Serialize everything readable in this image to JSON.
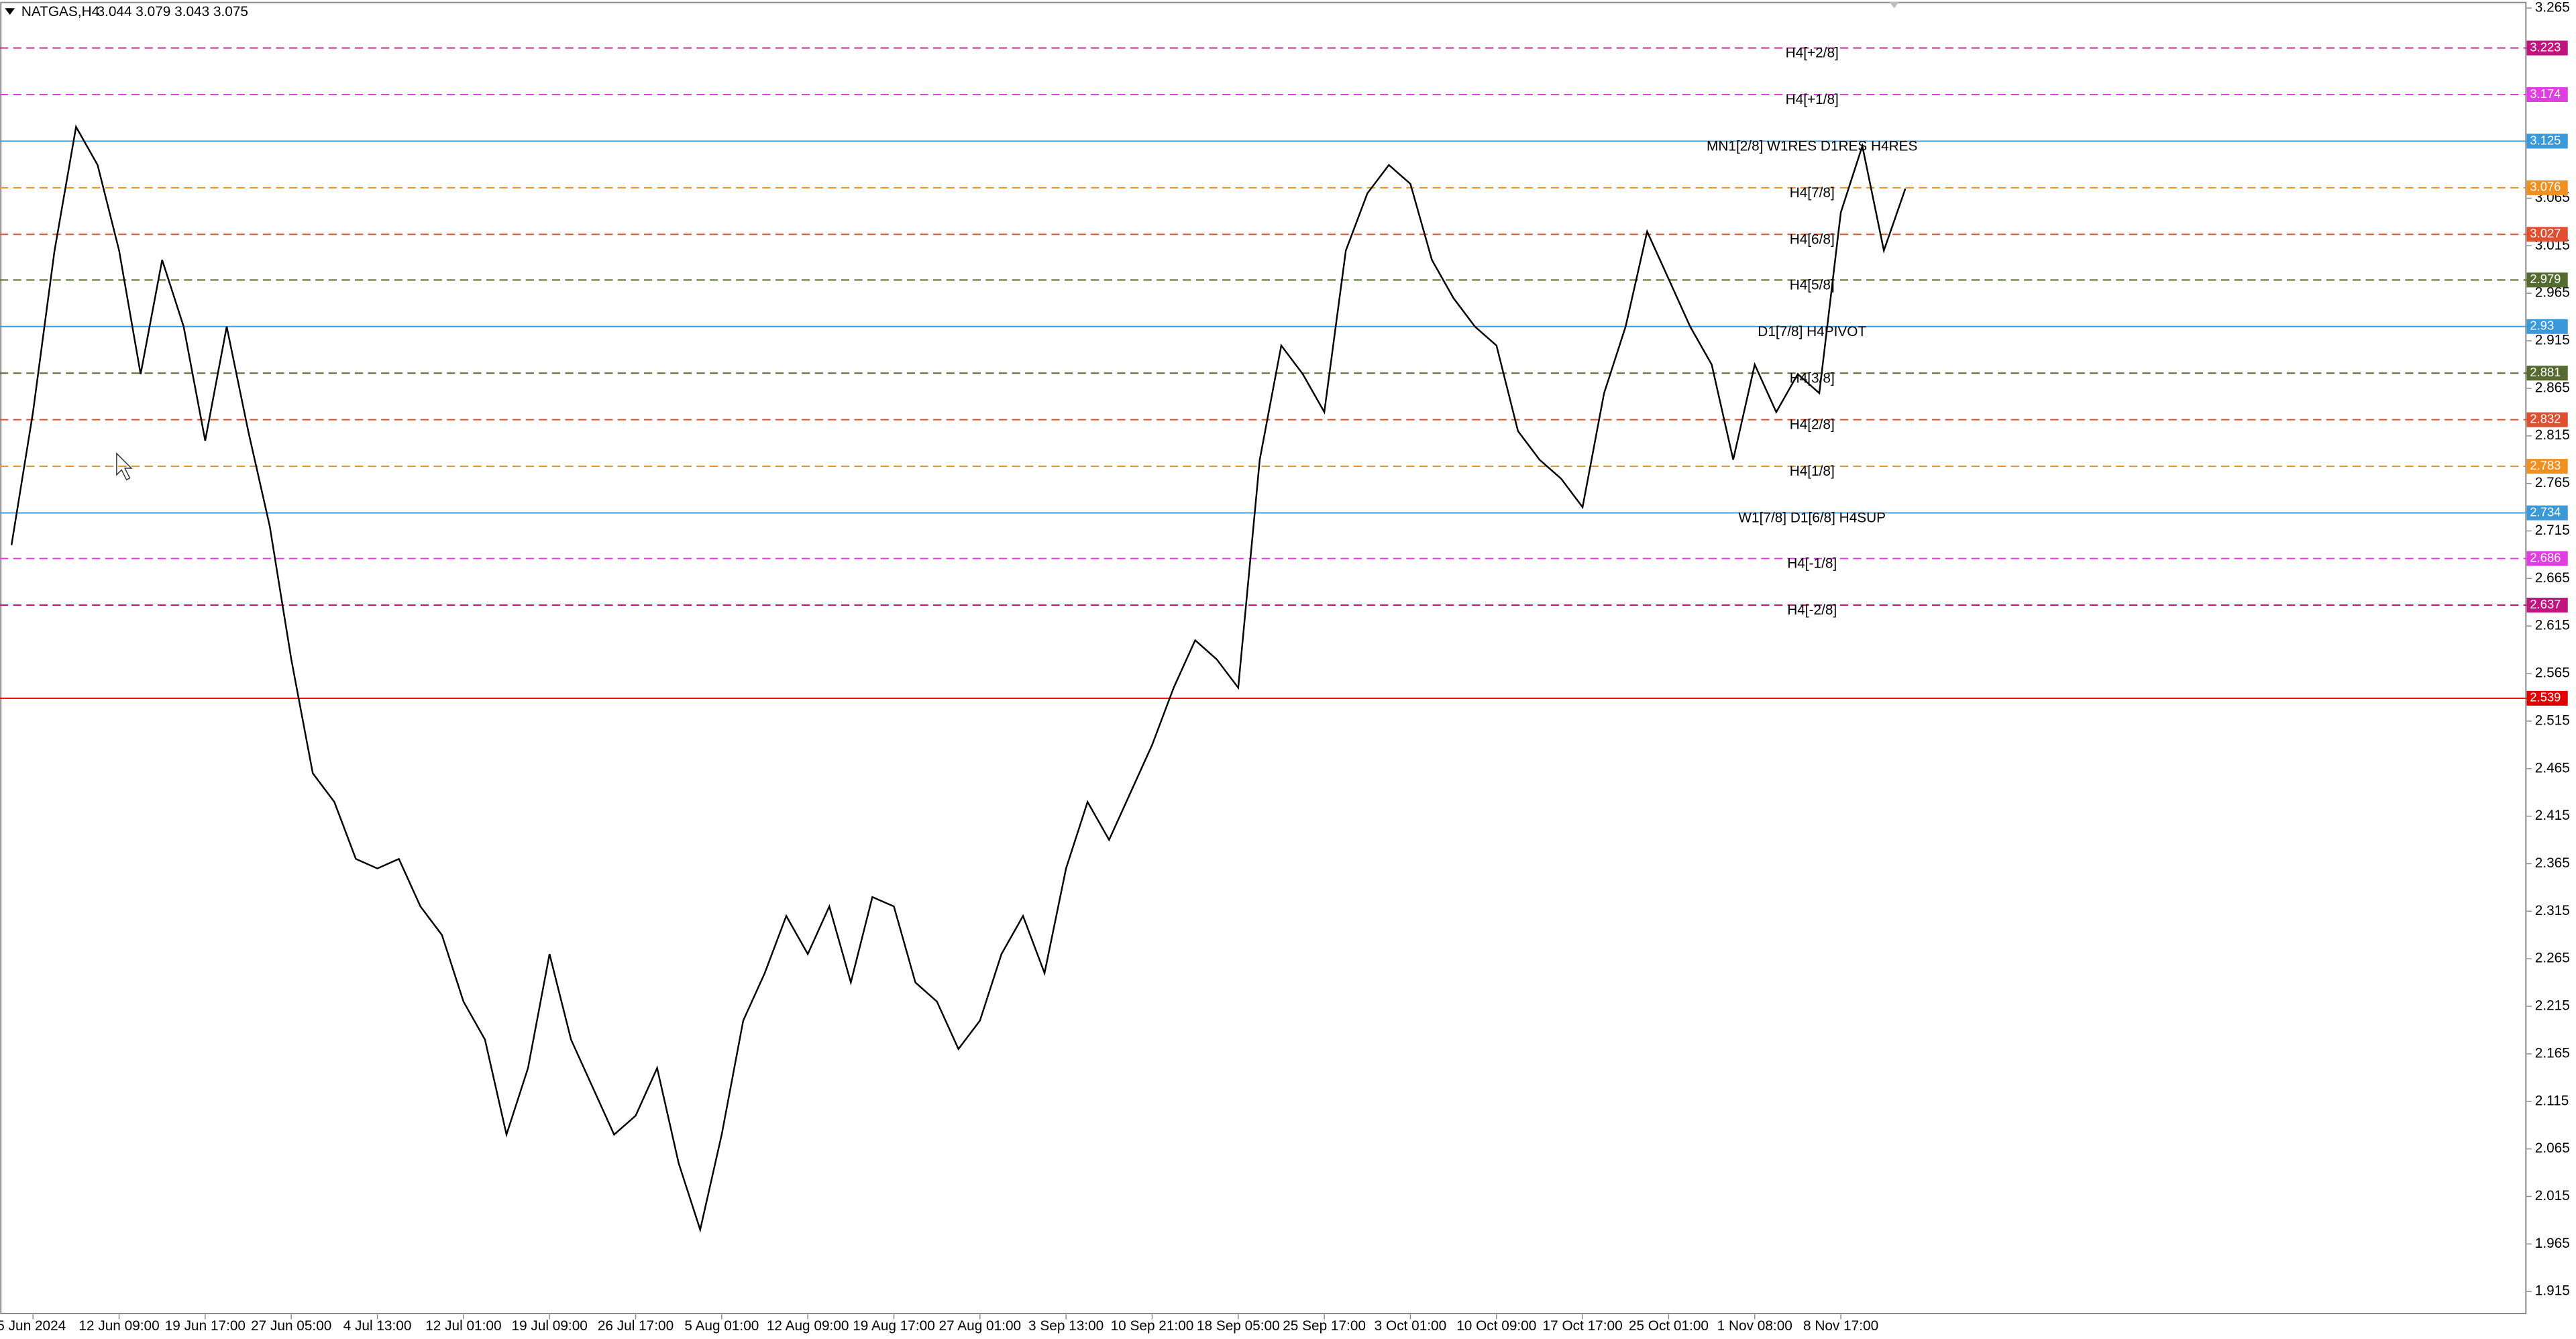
{
  "chart_data": {
    "type": "line",
    "title": "NATGAS,H4",
    "subtitle": "3.044 3.079 3.043 3.075",
    "categories": [
      null,
      "5 Jun 2024",
      null,
      null,
      null,
      "12 Jun 09:00",
      null,
      null,
      null,
      "19 Jun 17:00",
      null,
      null,
      null,
      "27 Jun 05:00",
      null,
      null,
      null,
      "4 Jul 13:00",
      null,
      null,
      null,
      "12 Jul 01:00",
      null,
      null,
      null,
      "19 Jul 09:00",
      null,
      null,
      null,
      "26 Jul 17:00",
      null,
      null,
      null,
      "5 Aug 01:00",
      null,
      null,
      null,
      "12 Aug 09:00",
      null,
      null,
      null,
      "19 Aug 17:00",
      null,
      null,
      null,
      "27 Aug 01:00",
      null,
      null,
      null,
      "3 Sep 13:00",
      null,
      null,
      null,
      "10 Sep 21:00",
      null,
      null,
      null,
      "18 Sep 05:00",
      null,
      null,
      null,
      "25 Sep 17:00",
      null,
      null,
      null,
      "3 Oct 01:00",
      null,
      null,
      null,
      "10 Oct 09:00",
      null,
      null,
      null,
      "17 Oct 17:00",
      null,
      null,
      null,
      "25 Oct 01:00",
      null,
      null,
      null,
      "1 Nov 08:00",
      null,
      null,
      null,
      "8 Nov 17:00",
      null,
      null,
      null
    ],
    "values": [
      2.7,
      2.84,
      3.01,
      3.14,
      3.1,
      3.01,
      2.88,
      3.0,
      2.93,
      2.81,
      2.93,
      2.82,
      2.72,
      2.58,
      2.46,
      2.43,
      2.37,
      2.36,
      2.37,
      2.32,
      2.29,
      2.22,
      2.18,
      2.08,
      2.15,
      2.27,
      2.18,
      2.13,
      2.08,
      2.1,
      2.15,
      2.05,
      1.98,
      2.08,
      2.2,
      2.25,
      2.31,
      2.27,
      2.32,
      2.24,
      2.33,
      2.32,
      2.24,
      2.22,
      2.17,
      2.2,
      2.27,
      2.31,
      2.25,
      2.36,
      2.43,
      2.39,
      2.44,
      2.49,
      2.55,
      2.6,
      2.58,
      2.55,
      2.79,
      2.91,
      2.88,
      2.84,
      3.01,
      3.07,
      3.1,
      3.08,
      3.0,
      2.96,
      2.93,
      2.91,
      2.82,
      2.79,
      2.77,
      2.74,
      2.86,
      2.93,
      3.03,
      2.98,
      2.93,
      2.89,
      2.79,
      2.89,
      2.84,
      2.88,
      2.86,
      3.05,
      3.12,
      3.01,
      3.075
    ],
    "color": "#000000",
    "ylim": [
      1.891,
      3.27
    ],
    "yticks": [
      3.265,
      3.065,
      3.015,
      2.965,
      2.915,
      2.865,
      2.815,
      2.765,
      2.715,
      2.665,
      2.615,
      2.565,
      2.515,
      2.465,
      2.415,
      2.365,
      2.315,
      2.265,
      2.215,
      2.165,
      2.115,
      2.065,
      2.015,
      1.965,
      1.915
    ],
    "levels": [
      {
        "value": 3.223,
        "label": "H4[+2/8]",
        "color": "#c0157f",
        "style": "dashed"
      },
      {
        "value": 3.174,
        "label": "H4[+1/8]",
        "color": "#e03ee0",
        "style": "dashed"
      },
      {
        "value": 3.125,
        "label": "MN1[2/8] W1RES D1RES H4RES",
        "color": "#3a9ad9",
        "style": "solid"
      },
      {
        "value": 3.076,
        "label": "H4[7/8]",
        "color": "#f09020",
        "style": "dashed"
      },
      {
        "value": 3.027,
        "label": "H4[6/8]",
        "color": "#e05030",
        "style": "dashed"
      },
      {
        "value": 2.979,
        "label": "H4[5/8]",
        "color": "#556b2f",
        "style": "dashed"
      },
      {
        "value": 2.93,
        "label": "D1[7/8] H4PIVOT",
        "color": "#3a9ad9",
        "style": "solid"
      },
      {
        "value": 2.881,
        "label": "H4[3/8]",
        "color": "#556b2f",
        "style": "dashed"
      },
      {
        "value": 2.832,
        "label": "H4[2/8]",
        "color": "#e05030",
        "style": "dashed"
      },
      {
        "value": 2.783,
        "label": "H4[1/8]",
        "color": "#f09020",
        "style": "dashed"
      },
      {
        "value": 2.734,
        "label": "W1[7/8] D1[6/8] H4SUP",
        "color": "#3a9ad9",
        "style": "solid"
      },
      {
        "value": 2.686,
        "label": "H4[-1/8]",
        "color": "#e03ee0",
        "style": "dashed"
      },
      {
        "value": 2.637,
        "label": "H4[-2/8]",
        "color": "#c0157f",
        "style": "dashed"
      },
      {
        "value": 2.539,
        "color": "#e00000",
        "style": "solid"
      }
    ]
  }
}
